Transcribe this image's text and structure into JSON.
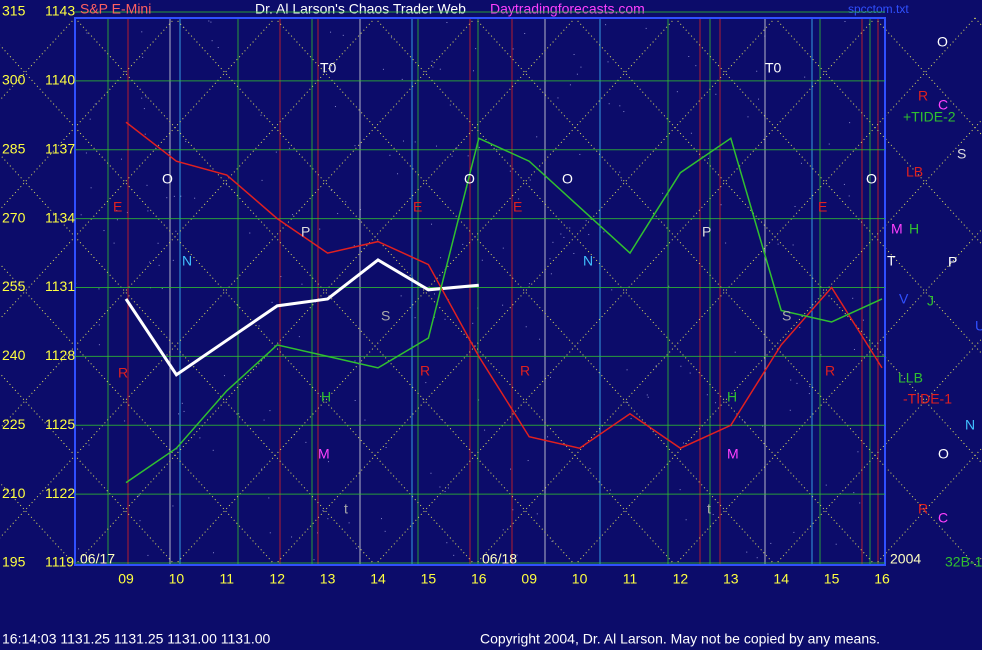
{
  "chart_data": {
    "type": "line",
    "title": "Dr. Al Larson's Chaos Trader Web",
    "subtitle": "Daytradingforecasts.com",
    "source": "spcctom.txt",
    "categories": [
      "09",
      "10",
      "11",
      "12",
      "13",
      "14",
      "15",
      "16",
      "09",
      "10",
      "11",
      "12",
      "13",
      "14",
      "15",
      "16"
    ],
    "date_labels": [
      "06/17",
      "06/18",
      "2004"
    ],
    "ylim": [
      1119,
      1143
    ],
    "yticks": [
      1119,
      1122,
      1125,
      1128,
      1131,
      1134,
      1137,
      1140,
      1143
    ],
    "y2lim": [
      195,
      315
    ],
    "y2ticks": [
      195,
      210,
      225,
      240,
      255,
      270,
      285,
      300,
      315
    ],
    "series": [
      {
        "name": "S&P E-Mini",
        "color": "#ffffff",
        "values": [
          1130.5,
          1127.2,
          1128.7,
          1130.2,
          1130.5,
          1132.2,
          1130.9,
          1131.1,
          null,
          null,
          null,
          null,
          null,
          null,
          null,
          null
        ]
      },
      {
        "name": "-TIDE-1",
        "color": "#e02020",
        "values": [
          1138.2,
          1136.5,
          1135.9,
          1134.0,
          1132.5,
          1133.0,
          1132.0,
          1128.0,
          1124.5,
          1124.0,
          1125.5,
          1124.0,
          1125.0,
          1128.5,
          1131.0,
          1127.5
        ]
      },
      {
        "name": "+TIDE-2",
        "color": "#30c030",
        "values": [
          1122.5,
          1124.0,
          1126.5,
          1128.5,
          1128.0,
          1127.5,
          1128.8,
          1137.5,
          1136.5,
          1134.5,
          1132.5,
          1136.0,
          1137.5,
          1130.0,
          1129.5,
          1130.5
        ]
      }
    ],
    "annotations": [
      "O",
      "R",
      "C",
      "S",
      "LB",
      "M",
      "H",
      "T",
      "P",
      "V",
      "J",
      "U",
      "LLB",
      "N",
      "O",
      "R",
      "C",
      "32B-1",
      "T0",
      "T0",
      "O",
      "O",
      "O",
      "O",
      "P",
      "P",
      "N",
      "N",
      "S",
      "S",
      "H",
      "H",
      "M",
      "M",
      "R",
      "R",
      "R",
      "R",
      "E",
      "E",
      "E",
      "E",
      "t",
      "t"
    ],
    "footer": "16:14:03  1131.25 1131.25 1131.00 1131.00",
    "copyright": "Copyright 2004, Dr. Al Larson. May not be copied by any means."
  }
}
